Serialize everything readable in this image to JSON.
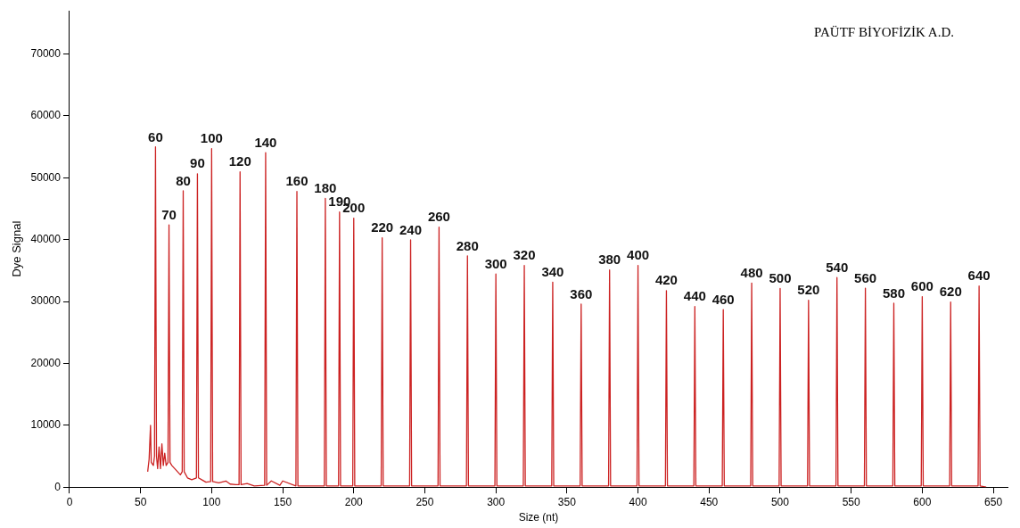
{
  "chart_data": {
    "type": "line",
    "xlabel": "Size (nt)",
    "ylabel": "Dye Signal",
    "xlim": [
      0,
      660
    ],
    "xticks": [
      0,
      50,
      100,
      150,
      200,
      250,
      300,
      350,
      400,
      450,
      500,
      550,
      600,
      650
    ],
    "ylim": [
      0,
      77000
    ],
    "yticks": [
      0,
      10000,
      20000,
      30000,
      40000,
      50000,
      60000,
      70000
    ],
    "grid": false,
    "legend": false,
    "marker": "none",
    "line_style": "solid",
    "series": [
      {
        "color": "#cc2222",
        "x": [
          55,
          56,
          57,
          57.5,
          59,
          59.8,
          60.5,
          61.2,
          62,
          63,
          64,
          65,
          66,
          67,
          68,
          69.3,
          70,
          70.7,
          72,
          74,
          76,
          78,
          79.3,
          80,
          80.7,
          83,
          86,
          89.3,
          90,
          90.7,
          93,
          96,
          99.3,
          100,
          100.7,
          105,
          110,
          113,
          117,
          119.3,
          120,
          120.7,
          125,
          130,
          137.3,
          138,
          138.7,
          142,
          148,
          150,
          159.3,
          160,
          160.7,
          170,
          179.3,
          180,
          180.7,
          189.3,
          190,
          190.7,
          199.3,
          200,
          200.7,
          219.3,
          220,
          220.7,
          239.3,
          240,
          240.7,
          259.3,
          260,
          260.7,
          279.3,
          280,
          280.7,
          299.3,
          300,
          300.7,
          319.3,
          320,
          320.7,
          339.3,
          340,
          340.7,
          359.3,
          360,
          360.7,
          379.3,
          380,
          380.7,
          399.3,
          400,
          400.7,
          419.3,
          420,
          420.7,
          439.3,
          440,
          440.7,
          459.3,
          460,
          460.7,
          479.3,
          480,
          480.7,
          499.3,
          500,
          500.7,
          519.3,
          520,
          520.7,
          539.3,
          540,
          540.7,
          559.3,
          560,
          560.7,
          579.3,
          580,
          580.7,
          599.3,
          600,
          600.7,
          619.3,
          620,
          620.7,
          639.3,
          640,
          640.7,
          645
        ],
        "values": [
          2500,
          4500,
          10000,
          4000,
          3500,
          5000,
          55000,
          5000,
          3000,
          6500,
          3000,
          7000,
          3500,
          5500,
          3500,
          4000,
          42400,
          4000,
          3500,
          3000,
          2500,
          2000,
          2500,
          47900,
          2500,
          1500,
          1200,
          1500,
          50650,
          1500,
          1200,
          800,
          900,
          54700,
          900,
          700,
          1000,
          500,
          400,
          400,
          50950,
          400,
          600,
          200,
          300,
          54070,
          300,
          1000,
          300,
          1000,
          200,
          47780,
          200,
          200,
          200,
          46660,
          200,
          200,
          44470,
          200,
          200,
          43480,
          200,
          200,
          40300,
          200,
          200,
          39970,
          200,
          200,
          42020,
          200,
          200,
          37380,
          200,
          200,
          34450,
          200,
          200,
          35830,
          200,
          200,
          33130,
          200,
          200,
          29580,
          200,
          200,
          35090,
          200,
          200,
          35830,
          200,
          200,
          31770,
          200,
          200,
          29180,
          200,
          200,
          28700,
          200,
          200,
          32990,
          200,
          200,
          32110,
          200,
          200,
          30210,
          200,
          200,
          33870,
          200,
          200,
          32160,
          200,
          200,
          29720,
          200,
          200,
          30790,
          200,
          200,
          29910,
          200,
          200,
          32500,
          200,
          0
        ]
      }
    ],
    "annotations": [
      "PAÜTF BİYOFİZİK A.D.",
      {
        "text": "60",
        "x": 60.5,
        "y": 54950
      },
      {
        "text": "70",
        "x": 70,
        "y": 42400
      },
      {
        "text": "80",
        "x": 80,
        "y": 47900
      },
      {
        "text": "90",
        "x": 90,
        "y": 50650
      },
      {
        "text": "100",
        "x": 100,
        "y": 54700
      },
      {
        "text": "120",
        "x": 120,
        "y": 50950
      },
      {
        "text": "140",
        "x": 138,
        "y": 54070
      },
      {
        "text": "160",
        "x": 160,
        "y": 47780
      },
      {
        "text": "180",
        "x": 180,
        "y": 46660
      },
      {
        "text": "190",
        "x": 190,
        "y": 44470
      },
      {
        "text": "200",
        "x": 200,
        "y": 43480
      },
      {
        "text": "220",
        "x": 220,
        "y": 40300
      },
      {
        "text": "240",
        "x": 240,
        "y": 39970
      },
      {
        "text": "260",
        "x": 260,
        "y": 42020
      },
      {
        "text": "280",
        "x": 280,
        "y": 37380
      },
      {
        "text": "300",
        "x": 300,
        "y": 34450
      },
      {
        "text": "320",
        "x": 320,
        "y": 35830
      },
      {
        "text": "340",
        "x": 340,
        "y": 33130
      },
      {
        "text": "360",
        "x": 360,
        "y": 29580
      },
      {
        "text": "380",
        "x": 380,
        "y": 35090
      },
      {
        "text": "400",
        "x": 400,
        "y": 35830
      },
      {
        "text": "420",
        "x": 420,
        "y": 31770
      },
      {
        "text": "440",
        "x": 440,
        "y": 29180
      },
      {
        "text": "460",
        "x": 460,
        "y": 28700
      },
      {
        "text": "480",
        "x": 480,
        "y": 32990
      },
      {
        "text": "500",
        "x": 500,
        "y": 32110
      },
      {
        "text": "520",
        "x": 520,
        "y": 30210
      },
      {
        "text": "540",
        "x": 540,
        "y": 33870
      },
      {
        "text": "560",
        "x": 560,
        "y": 32160
      },
      {
        "text": "580",
        "x": 580,
        "y": 29720
      },
      {
        "text": "600",
        "x": 600,
        "y": 30790
      },
      {
        "text": "620",
        "x": 620,
        "y": 29910
      },
      {
        "text": "640",
        "x": 640,
        "y": 32500
      }
    ]
  }
}
